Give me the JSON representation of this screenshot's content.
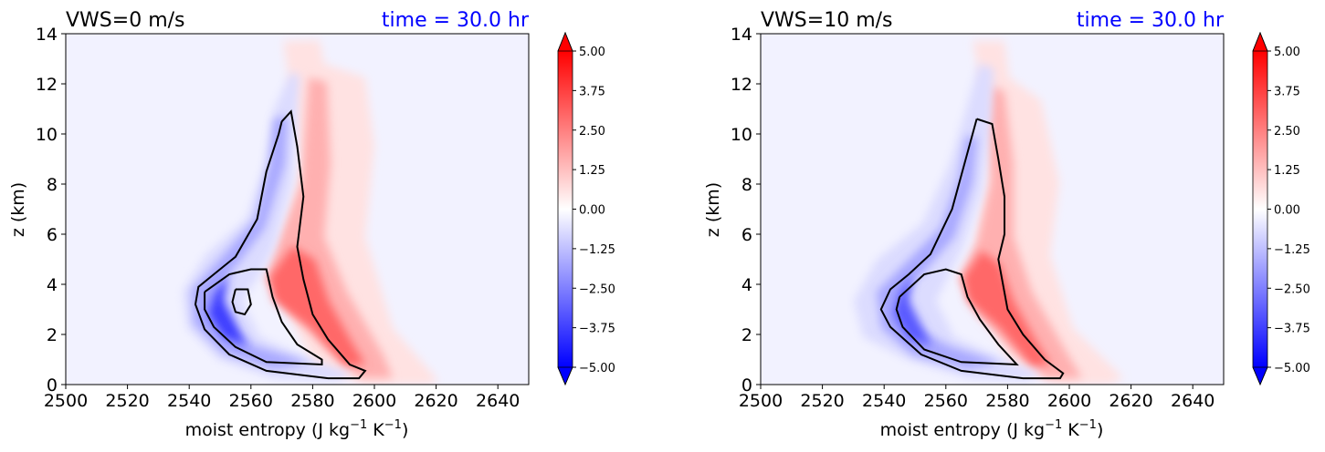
{
  "chart_data": [
    {
      "type": "contour",
      "title_left": "VWS=0 m/s",
      "title_right": "time = 30.0 hr",
      "title_right_color": "#0000ff",
      "xlabel_main": "moist entropy (J kg",
      "xlabel_sup1": "−1",
      "xlabel_mid": " K",
      "xlabel_sup2": "−1",
      "xlabel_end": ")",
      "ylabel": "z (km)",
      "xlim": [
        2500,
        2650
      ],
      "ylim": [
        0,
        14
      ],
      "xticks": [
        "2500",
        "2520",
        "2540",
        "2560",
        "2580",
        "2600",
        "2620",
        "2640"
      ],
      "yticks": [
        "0",
        "2",
        "4",
        "6",
        "8",
        "10",
        "12",
        "14"
      ],
      "colorbar": {
        "colormap": "bwr",
        "range": [
          -5,
          5
        ],
        "extend": "both",
        "ticks": [
          "5.00",
          "3.75",
          "2.50",
          "1.25",
          "0.00",
          "−1.25",
          "−2.50",
          "−3.75",
          "−5.00"
        ]
      },
      "contour_lines": [
        [
          [
            2570,
            10.5
          ],
          [
            2573,
            10.9
          ],
          [
            2575,
            9.5
          ],
          [
            2577,
            7.5
          ],
          [
            2575,
            5.5
          ],
          [
            2577,
            4.2
          ],
          [
            2580,
            2.8
          ],
          [
            2585,
            1.8
          ],
          [
            2592,
            0.8
          ],
          [
            2597,
            0.55
          ],
          [
            2595,
            0.25
          ],
          [
            2585,
            0.25
          ],
          [
            2565,
            0.55
          ],
          [
            2553,
            1.2
          ],
          [
            2545,
            2.2
          ],
          [
            2542,
            3.2
          ],
          [
            2543,
            3.9
          ],
          [
            2548,
            4.4
          ],
          [
            2555,
            5.1
          ],
          [
            2562,
            6.6
          ],
          [
            2565,
            8.5
          ],
          [
            2569,
            10.0
          ],
          [
            2570,
            10.5
          ]
        ],
        [
          [
            2545,
            3.7
          ],
          [
            2553,
            4.4
          ],
          [
            2560,
            4.6
          ],
          [
            2565,
            4.6
          ],
          [
            2567,
            3.5
          ],
          [
            2570,
            2.5
          ],
          [
            2575,
            1.6
          ],
          [
            2583,
            1.0
          ],
          [
            2583,
            0.8
          ],
          [
            2565,
            0.9
          ],
          [
            2555,
            1.5
          ],
          [
            2548,
            2.3
          ],
          [
            2545,
            3.0
          ],
          [
            2545,
            3.7
          ]
        ],
        [
          [
            2555,
            3.8
          ],
          [
            2559,
            3.8
          ],
          [
            2560,
            3.2
          ],
          [
            2558,
            2.8
          ],
          [
            2555,
            2.9
          ],
          [
            2554,
            3.3
          ],
          [
            2555,
            3.8
          ]
        ]
      ]
    },
    {
      "type": "contour",
      "title_left": "VWS=10 m/s",
      "title_right": "time = 30.0 hr",
      "title_right_color": "#0000ff",
      "xlabel_main": "moist entropy (J kg",
      "xlabel_sup1": "−1",
      "xlabel_mid": " K",
      "xlabel_sup2": "−1",
      "xlabel_end": ")",
      "ylabel": "z (km)",
      "xlim": [
        2500,
        2650
      ],
      "ylim": [
        0,
        14
      ],
      "xticks": [
        "2500",
        "2520",
        "2540",
        "2560",
        "2580",
        "2600",
        "2620",
        "2640"
      ],
      "yticks": [
        "0",
        "2",
        "4",
        "6",
        "8",
        "10",
        "12",
        "14"
      ],
      "colorbar": {
        "colormap": "bwr",
        "range": [
          -5,
          5
        ],
        "extend": "both",
        "ticks": [
          "5.00",
          "3.75",
          "2.50",
          "1.25",
          "0.00",
          "−1.25",
          "−2.50",
          "−3.75",
          "−5.00"
        ]
      },
      "contour_lines": [
        [
          [
            2570,
            10.6
          ],
          [
            2575,
            10.4
          ],
          [
            2577,
            9.0
          ],
          [
            2579,
            7.5
          ],
          [
            2579,
            6.0
          ],
          [
            2577,
            5.0
          ],
          [
            2580,
            3.0
          ],
          [
            2585,
            2.0
          ],
          [
            2592,
            1.0
          ],
          [
            2598,
            0.45
          ],
          [
            2597,
            0.25
          ],
          [
            2585,
            0.25
          ],
          [
            2565,
            0.55
          ],
          [
            2552,
            1.2
          ],
          [
            2542,
            2.3
          ],
          [
            2539,
            3.0
          ],
          [
            2542,
            3.8
          ],
          [
            2548,
            4.4
          ],
          [
            2555,
            5.2
          ],
          [
            2562,
            7.0
          ],
          [
            2566,
            8.8
          ],
          [
            2570,
            10.6
          ]
        ],
        [
          [
            2545,
            3.5
          ],
          [
            2553,
            4.4
          ],
          [
            2560,
            4.6
          ],
          [
            2565,
            4.4
          ],
          [
            2567,
            3.5
          ],
          [
            2571,
            2.6
          ],
          [
            2577,
            1.6
          ],
          [
            2583,
            0.8
          ],
          [
            2565,
            0.9
          ],
          [
            2553,
            1.4
          ],
          [
            2546,
            2.3
          ],
          [
            2544,
            3.0
          ],
          [
            2545,
            3.5
          ]
        ]
      ]
    }
  ]
}
